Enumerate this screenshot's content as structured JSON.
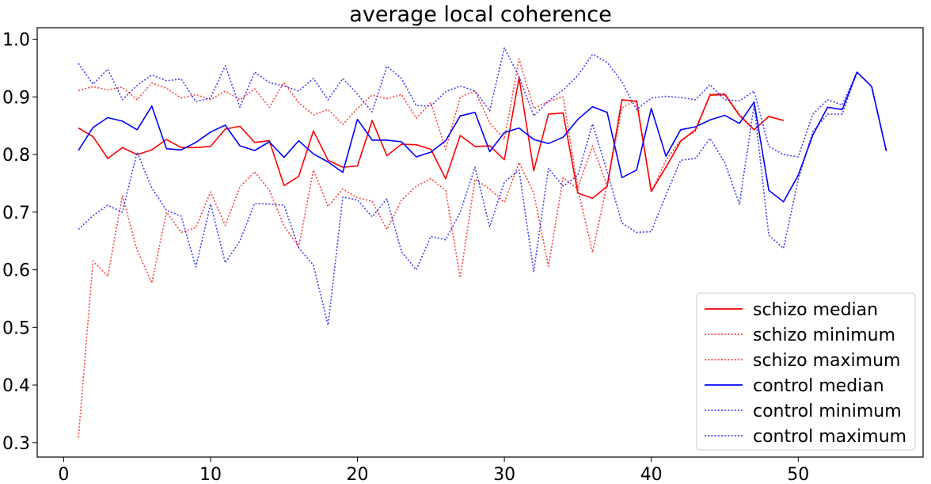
{
  "chart_data": {
    "type": "line",
    "title": "average local  coherence",
    "xlabel": "",
    "ylabel": "",
    "xlim": [
      -1.8,
      58.5
    ],
    "ylim": [
      0.275,
      1.02
    ],
    "xticks": [
      0,
      10,
      20,
      30,
      40,
      50
    ],
    "yticks": [
      0.3,
      0.4,
      0.5,
      0.6,
      0.7,
      0.8,
      0.9,
      1.0
    ],
    "xtick_labels": [
      "0",
      "10",
      "20",
      "30",
      "40",
      "50"
    ],
    "ytick_labels": [
      "0.3",
      "0.4",
      "0.5",
      "0.6",
      "0.7",
      "0.8",
      "0.9",
      "1.0"
    ],
    "grid": false,
    "legend_position": "lower-right",
    "series": [
      {
        "name": "schizo median",
        "color": "#ff0000",
        "style": "solid",
        "x": [
          1,
          2,
          3,
          4,
          5,
          6,
          7,
          8,
          9,
          10,
          11,
          12,
          13,
          14,
          15,
          16,
          17,
          18,
          19,
          20,
          21,
          22,
          23,
          24,
          25,
          26,
          27,
          28,
          29,
          30,
          31,
          32,
          33,
          34,
          35,
          36,
          37,
          38,
          39,
          40,
          41,
          42,
          43,
          44,
          45,
          46,
          47,
          48,
          49
        ],
        "y": [
          0.846,
          0.831,
          0.793,
          0.812,
          0.8,
          0.808,
          0.826,
          0.812,
          0.812,
          0.814,
          0.844,
          0.849,
          0.821,
          0.824,
          0.746,
          0.762,
          0.841,
          0.79,
          0.778,
          0.78,
          0.859,
          0.798,
          0.818,
          0.817,
          0.809,
          0.758,
          0.833,
          0.814,
          0.815,
          0.791,
          0.933,
          0.772,
          0.87,
          0.872,
          0.733,
          0.724,
          0.745,
          0.895,
          0.892,
          0.736,
          0.778,
          0.823,
          0.843,
          0.903,
          0.904,
          0.868,
          0.843,
          0.866,
          0.859
        ]
      },
      {
        "name": "schizo minimum",
        "color": "#ff0000",
        "style": "dotted",
        "x": [
          1,
          2,
          3,
          4,
          5,
          6,
          7,
          8,
          9,
          10,
          11,
          12,
          13,
          14,
          15,
          16,
          17,
          18,
          19,
          20,
          21,
          22,
          23,
          24,
          25,
          26,
          27,
          28,
          29,
          30,
          31,
          32,
          33,
          34,
          35,
          36,
          37,
          38,
          39,
          40,
          41,
          42,
          43,
          44,
          45,
          46,
          47,
          48,
          49
        ],
        "y": [
          0.309,
          0.615,
          0.589,
          0.728,
          0.634,
          0.577,
          0.7,
          0.665,
          0.673,
          0.735,
          0.677,
          0.744,
          0.77,
          0.738,
          0.676,
          0.64,
          0.773,
          0.71,
          0.74,
          0.725,
          0.719,
          0.67,
          0.721,
          0.745,
          0.758,
          0.738,
          0.586,
          0.757,
          0.74,
          0.717,
          0.786,
          0.733,
          0.606,
          0.76,
          0.74,
          0.63,
          0.75,
          0.881,
          0.895,
          0.735,
          0.79,
          0.825,
          0.84,
          0.905,
          0.906,
          0.87,
          0.843,
          0.866,
          0.859
        ]
      },
      {
        "name": "schizo maximum",
        "color": "#ff0000",
        "style": "dotted",
        "x": [
          1,
          2,
          3,
          4,
          5,
          6,
          7,
          8,
          9,
          10,
          11,
          12,
          13,
          14,
          15,
          16,
          17,
          18,
          19,
          20,
          21,
          22,
          23,
          24,
          25,
          26,
          27,
          28,
          29,
          30,
          31,
          32,
          33,
          34,
          35,
          36,
          37,
          38,
          39,
          40,
          41,
          42,
          43,
          44,
          45,
          46,
          47,
          48,
          49
        ],
        "y": [
          0.911,
          0.918,
          0.912,
          0.917,
          0.895,
          0.924,
          0.915,
          0.898,
          0.904,
          0.895,
          0.91,
          0.895,
          0.914,
          0.882,
          0.925,
          0.89,
          0.869,
          0.878,
          0.852,
          0.88,
          0.903,
          0.897,
          0.904,
          0.863,
          0.89,
          0.809,
          0.9,
          0.91,
          0.855,
          0.826,
          0.966,
          0.88,
          0.892,
          0.9,
          0.742,
          0.815,
          0.745,
          0.895,
          0.892,
          0.736,
          0.778,
          0.823,
          0.843,
          0.903,
          0.904,
          0.868,
          0.843,
          0.866,
          0.859
        ]
      },
      {
        "name": "control median",
        "color": "#0000ff",
        "style": "solid",
        "x": [
          1,
          2,
          3,
          4,
          5,
          6,
          7,
          8,
          9,
          10,
          11,
          12,
          13,
          14,
          15,
          16,
          17,
          18,
          19,
          20,
          21,
          22,
          23,
          24,
          25,
          26,
          27,
          28,
          29,
          30,
          31,
          32,
          33,
          34,
          35,
          36,
          37,
          38,
          39,
          40,
          41,
          42,
          43,
          44,
          45,
          46,
          47,
          48,
          49,
          50,
          51,
          52,
          53,
          54,
          55,
          56
        ],
        "y": [
          0.807,
          0.847,
          0.864,
          0.858,
          0.843,
          0.884,
          0.81,
          0.808,
          0.821,
          0.839,
          0.851,
          0.815,
          0.807,
          0.822,
          0.795,
          0.824,
          0.801,
          0.787,
          0.769,
          0.861,
          0.825,
          0.825,
          0.822,
          0.796,
          0.804,
          0.824,
          0.867,
          0.873,
          0.805,
          0.838,
          0.846,
          0.826,
          0.819,
          0.83,
          0.861,
          0.883,
          0.873,
          0.76,
          0.773,
          0.88,
          0.797,
          0.843,
          0.848,
          0.86,
          0.868,
          0.854,
          0.891,
          0.738,
          0.718,
          0.764,
          0.834,
          0.882,
          0.878,
          0.943,
          0.918,
          0.806
        ]
      },
      {
        "name": "control minimum",
        "color": "#0000ff",
        "style": "dotted",
        "x": [
          1,
          2,
          3,
          4,
          5,
          6,
          7,
          8,
          9,
          10,
          11,
          12,
          13,
          14,
          15,
          16,
          17,
          18,
          19,
          20,
          21,
          22,
          23,
          24,
          25,
          26,
          27,
          28,
          29,
          30,
          31,
          32,
          33,
          34,
          35,
          36,
          37,
          38,
          39,
          40,
          41,
          42,
          43,
          44,
          45,
          46,
          47,
          48,
          49,
          50,
          51,
          52,
          53,
          54,
          55,
          56
        ],
        "y": [
          0.67,
          0.694,
          0.712,
          0.7,
          0.804,
          0.742,
          0.703,
          0.693,
          0.605,
          0.714,
          0.612,
          0.65,
          0.715,
          0.714,
          0.712,
          0.638,
          0.608,
          0.504,
          0.726,
          0.721,
          0.692,
          0.723,
          0.631,
          0.6,
          0.658,
          0.652,
          0.7,
          0.778,
          0.675,
          0.752,
          0.773,
          0.597,
          0.776,
          0.745,
          0.764,
          0.853,
          0.77,
          0.681,
          0.665,
          0.666,
          0.73,
          0.79,
          0.793,
          0.828,
          0.786,
          0.714,
          0.886,
          0.66,
          0.637,
          0.757,
          0.84,
          0.87,
          0.87,
          0.943,
          0.918,
          0.806
        ]
      },
      {
        "name": "control maximum",
        "color": "#0000ff",
        "style": "dotted",
        "x": [
          1,
          2,
          3,
          4,
          5,
          6,
          7,
          8,
          9,
          10,
          11,
          12,
          13,
          14,
          15,
          16,
          17,
          18,
          19,
          20,
          21,
          22,
          23,
          24,
          25,
          26,
          27,
          28,
          29,
          30,
          31,
          32,
          33,
          34,
          35,
          36,
          37,
          38,
          39,
          40,
          41,
          42,
          43,
          44,
          45,
          46,
          47,
          48,
          49,
          50,
          51,
          52,
          53,
          54,
          55,
          56
        ],
        "y": [
          0.958,
          0.922,
          0.948,
          0.895,
          0.92,
          0.938,
          0.928,
          0.931,
          0.892,
          0.898,
          0.954,
          0.882,
          0.943,
          0.925,
          0.919,
          0.91,
          0.932,
          0.895,
          0.932,
          0.905,
          0.874,
          0.953,
          0.932,
          0.885,
          0.884,
          0.909,
          0.919,
          0.91,
          0.876,
          0.985,
          0.935,
          0.867,
          0.893,
          0.912,
          0.937,
          0.974,
          0.96,
          0.926,
          0.878,
          0.898,
          0.901,
          0.899,
          0.895,
          0.921,
          0.895,
          0.893,
          0.91,
          0.814,
          0.8,
          0.796,
          0.87,
          0.895,
          0.886,
          0.943,
          0.918,
          0.806
        ]
      }
    ]
  }
}
